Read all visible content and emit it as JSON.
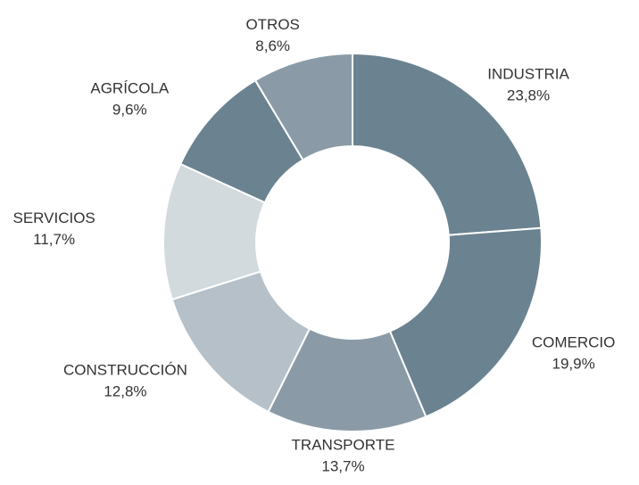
{
  "chart_data": {
    "type": "donut",
    "categories": [
      "INDUSTRIA",
      "COMERCIO",
      "TRANSPORTE",
      "CONSTRUCCIÓN",
      "SERVICIOS",
      "AGRÍCOLA",
      "OTROS"
    ],
    "values": [
      23.8,
      19.9,
      13.7,
      12.8,
      11.7,
      9.6,
      8.6
    ],
    "value_labels": [
      "23,8%",
      "19,9%",
      "13,7%",
      "12,8%",
      "11,7%",
      "9,6%",
      "8,6%"
    ],
    "colors": [
      "#6b8290",
      "#6b8290",
      "#8a9ba7",
      "#b5c0c8",
      "#d3dade",
      "#6b8290",
      "#8a9ba7"
    ]
  }
}
